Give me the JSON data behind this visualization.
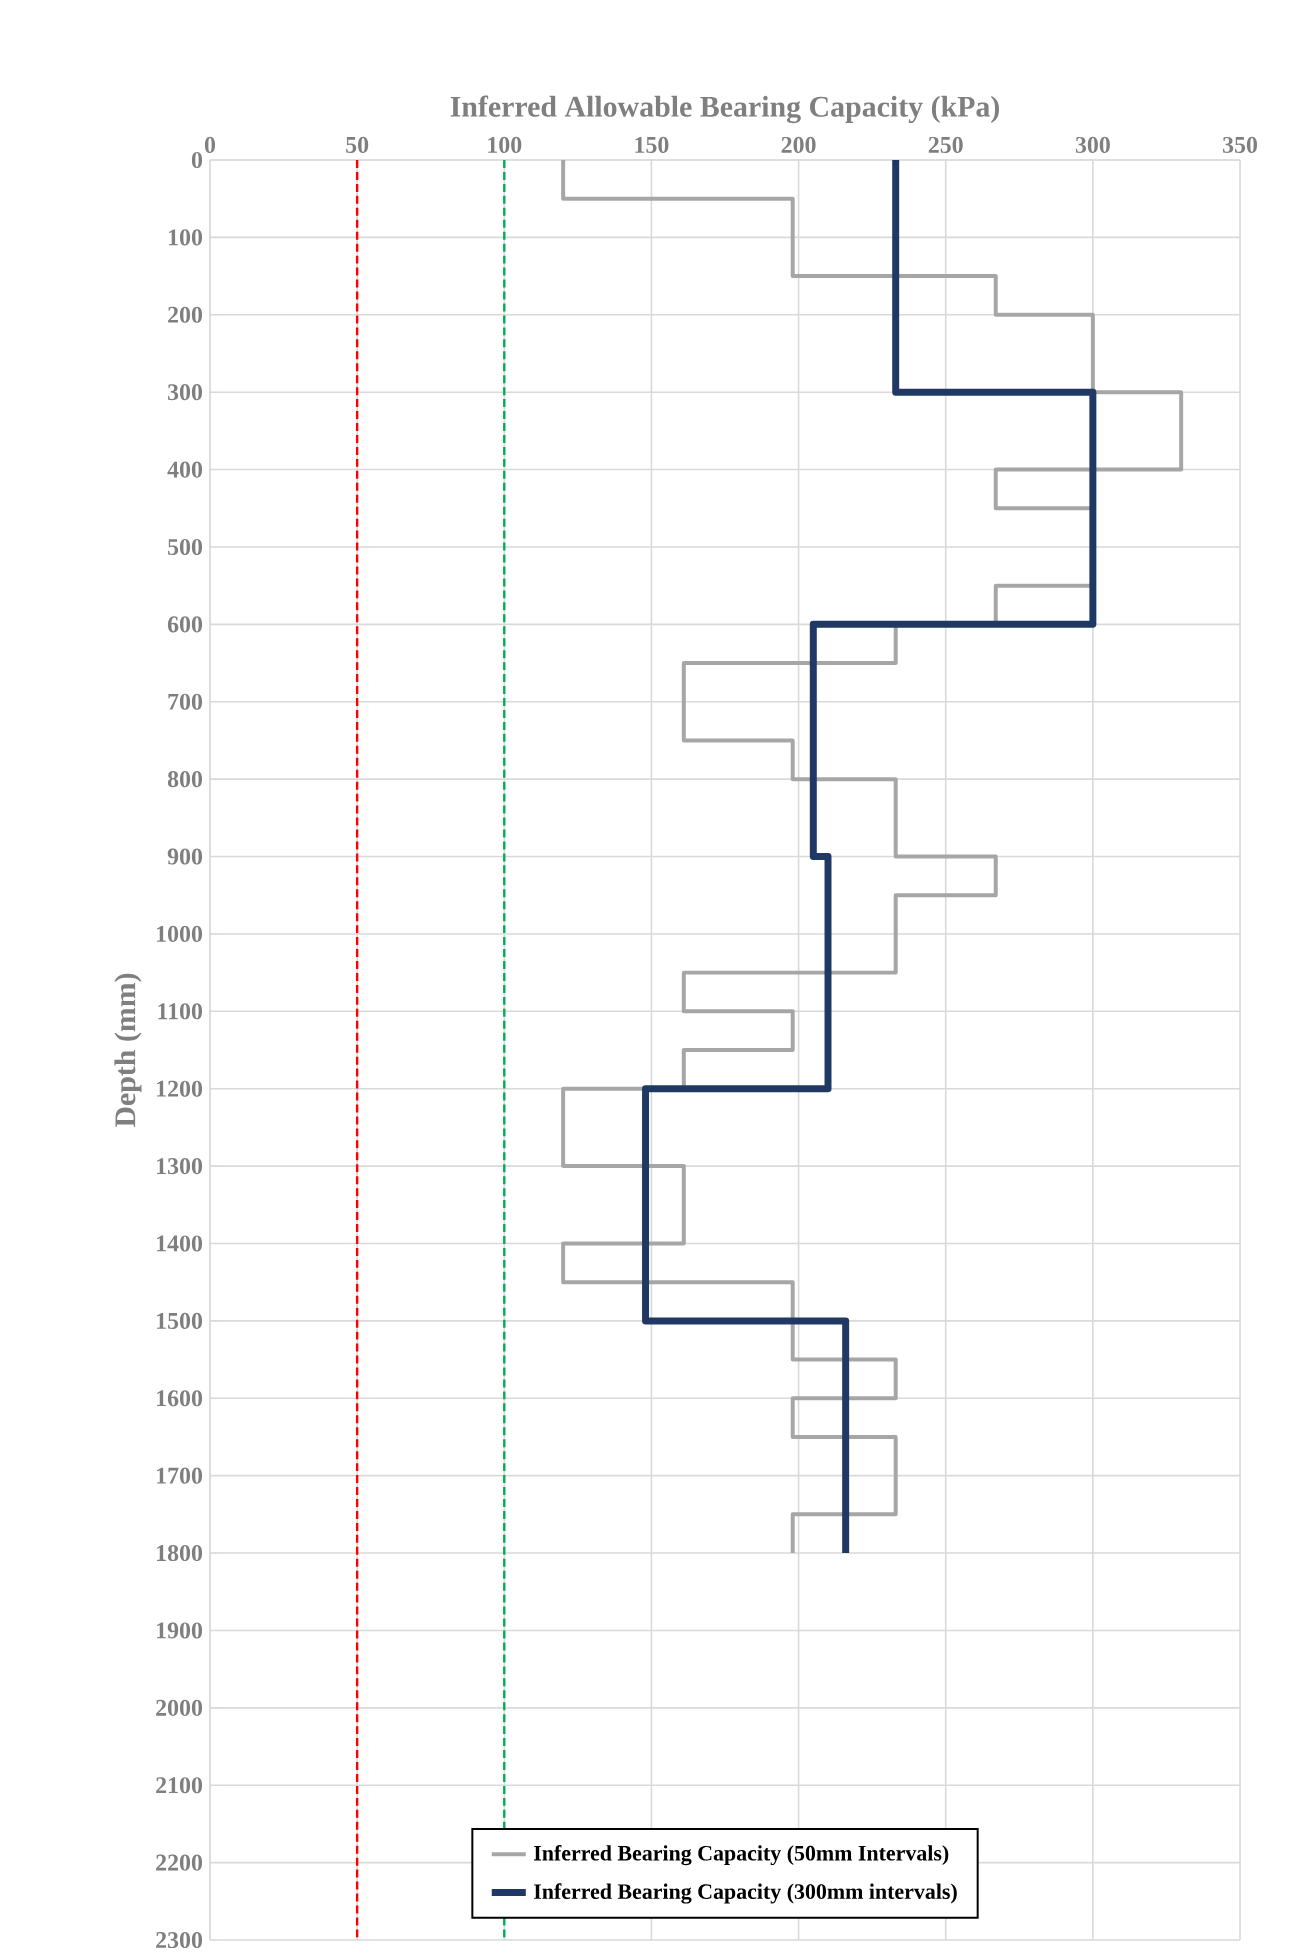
{
  "chart_data": {
    "type": "line",
    "xlabel": "Inferred Allowable Bearing Capacity (kPa)",
    "ylabel": "Depth (mm)",
    "xlim": [
      0,
      350
    ],
    "xticks": [
      0,
      50,
      100,
      150,
      200,
      250,
      300,
      350
    ],
    "ylim": [
      2300,
      0
    ],
    "yticks": [
      0,
      100,
      200,
      300,
      400,
      500,
      600,
      700,
      800,
      900,
      1000,
      1100,
      1200,
      1300,
      1400,
      1500,
      1600,
      1700,
      1800,
      1900,
      2000,
      2100,
      2200,
      2300
    ],
    "grid": true,
    "legend": "bottom",
    "line_style": "solid",
    "marker": "none",
    "series": [
      {
        "name": "Inferred Bearing Capacity (50mm Intervals)",
        "color": "#a6a6a6",
        "x": [
          120,
          120,
          198,
          198,
          267,
          267,
          300,
          300,
          330,
          330,
          267,
          267,
          300,
          300,
          267,
          267,
          233,
          233,
          161,
          161,
          198,
          198,
          233,
          233,
          267,
          267,
          233,
          233,
          161,
          161,
          198,
          198,
          161,
          161,
          120,
          120,
          161,
          161,
          120,
          120,
          198,
          198,
          233,
          233,
          198,
          198,
          233,
          233,
          198,
          198
        ],
        "values": [
          0,
          50,
          50,
          150,
          150,
          200,
          200,
          300,
          300,
          400,
          400,
          450,
          450,
          550,
          550,
          600,
          600,
          650,
          650,
          750,
          750,
          800,
          800,
          900,
          900,
          950,
          950,
          1050,
          1050,
          1100,
          1100,
          1150,
          1150,
          1200,
          1200,
          1300,
          1300,
          1400,
          1400,
          1450,
          1450,
          1550,
          1550,
          1600,
          1600,
          1650,
          1650,
          1750,
          1750,
          1800
        ]
      },
      {
        "name": "Inferred Bearing Capacity (300mm intervals)",
        "color": "#1f3864",
        "x": [
          233,
          233,
          300,
          300,
          205,
          205,
          210,
          210,
          148,
          148,
          216,
          216
        ],
        "values": [
          0,
          300,
          300,
          600,
          600,
          900,
          900,
          1200,
          1200,
          1500,
          1500,
          1800
        ]
      }
    ],
    "ref_lines": [
      {
        "axis": "x",
        "value": 50,
        "color": "#ff0000",
        "line_style": "dashed"
      },
      {
        "axis": "x",
        "value": 100,
        "color": "#00b050",
        "line_style": "dashed"
      }
    ]
  }
}
